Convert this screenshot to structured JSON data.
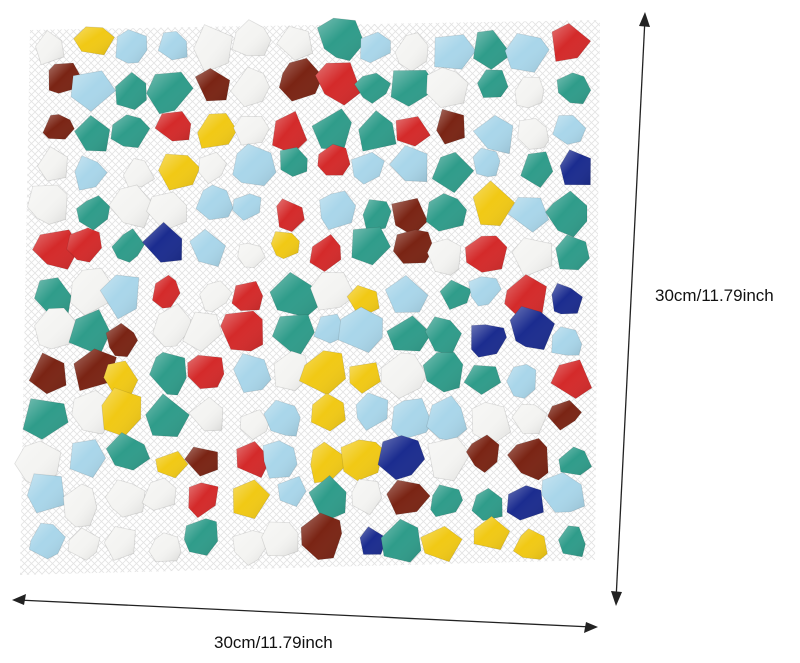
{
  "product": {
    "dimension_width_text": "30cm/11.79inch",
    "dimension_height_text": "30cm/11.79inch"
  },
  "palette": {
    "dark_blue": "#1b2c8f",
    "red": "#d42a2a",
    "light_blue": "#a9d6ea",
    "teal": "#2f9c8a",
    "white": "#f4f4f2",
    "yellow": "#f1c915",
    "brown": "#7a2414",
    "grout_mesh": "#e6e6e6",
    "arrow": "#222222"
  }
}
